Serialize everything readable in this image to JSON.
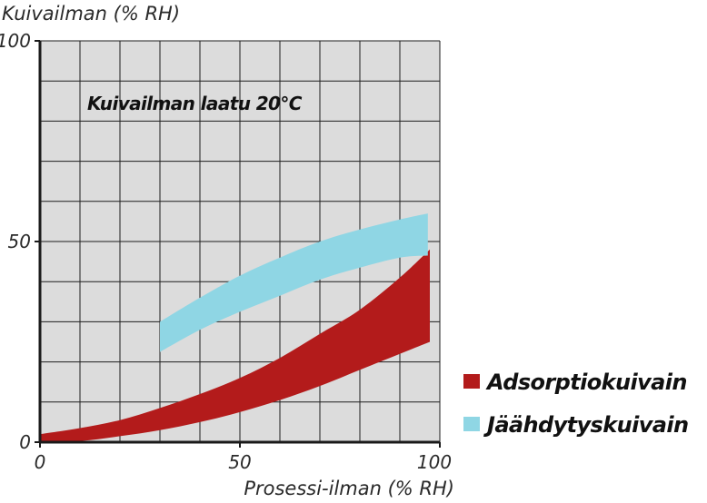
{
  "chart_data": {
    "type": "area",
    "ylabel": "Kuivailman (% RH)",
    "xlabel": "Prosessi-ilman (% RH)",
    "annotation": "Kuivailman laatu 20°C",
    "xlim": [
      0,
      100
    ],
    "ylim": [
      0,
      100
    ],
    "x_ticks": [
      0,
      50,
      100
    ],
    "y_ticks": [
      0,
      50,
      100
    ],
    "x_tick_labels": [
      "0",
      "50",
      "100"
    ],
    "y_tick_labels": [
      "0",
      "50",
      "100"
    ],
    "grid": true,
    "grid_step": 10,
    "legend_position": "right",
    "background_color": "#dcdcdc",
    "series": [
      {
        "name": "Adsorptiokuivain",
        "color": "#b31b1b",
        "x": [
          0,
          10,
          20,
          30,
          40,
          50,
          60,
          70,
          80,
          90,
          97.5
        ],
        "upper": [
          2,
          3.5,
          5.5,
          8.5,
          12,
          16,
          21,
          27,
          33,
          41,
          48
        ],
        "lower": [
          0,
          0.3,
          1.5,
          3,
          5,
          7.5,
          10.5,
          14,
          18,
          22,
          25
        ]
      },
      {
        "name": "Jäähdytyskuivain",
        "color": "#8fd6e4",
        "x": [
          30,
          40,
          50,
          60,
          70,
          80,
          90,
          97
        ],
        "upper": [
          30,
          36,
          41.5,
          46,
          50,
          53,
          55.5,
          57
        ],
        "lower": [
          22.5,
          28,
          32.5,
          36.5,
          40.5,
          43.5,
          46,
          46.5
        ]
      }
    ]
  }
}
